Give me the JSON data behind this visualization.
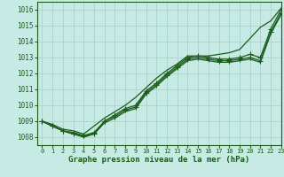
{
  "title": "Graphe pression niveau de la mer (hPa)",
  "bg_color": "#c8eae4",
  "grid_color": "#aad8d0",
  "line_color": "#1a5c1a",
  "xlim": [
    -0.5,
    23
  ],
  "ylim": [
    1007.5,
    1016.5
  ],
  "yticks": [
    1008,
    1009,
    1010,
    1011,
    1012,
    1013,
    1014,
    1015,
    1016
  ],
  "xticks": [
    0,
    1,
    2,
    3,
    4,
    5,
    6,
    7,
    8,
    9,
    10,
    11,
    12,
    13,
    14,
    15,
    16,
    17,
    18,
    19,
    20,
    21,
    22,
    23
  ],
  "lines": [
    {
      "x": [
        0,
        1,
        2,
        3,
        4,
        5,
        6,
        7,
        8,
        9,
        10,
        11,
        12,
        13,
        14,
        15,
        16,
        17,
        18,
        19,
        20,
        21,
        22,
        23
      ],
      "y": [
        1009.0,
        1008.8,
        1008.5,
        1008.4,
        1008.2,
        1008.7,
        1009.2,
        1009.6,
        1010.0,
        1010.5,
        1011.1,
        1011.7,
        1012.2,
        1012.6,
        1013.1,
        1013.1,
        1013.1,
        1013.2,
        1013.3,
        1013.5,
        1014.2,
        1014.9,
        1015.3,
        1016.1
      ],
      "marker": null,
      "markersize": 0,
      "linewidth": 0.9
    },
    {
      "x": [
        0,
        1,
        2,
        3,
        4,
        5,
        6,
        7,
        8,
        9,
        10,
        11,
        12,
        13,
        14,
        15,
        16,
        17,
        18,
        19,
        20,
        21,
        22,
        23
      ],
      "y": [
        1009.0,
        1008.7,
        1008.4,
        1008.2,
        1008.1,
        1008.2,
        1009.0,
        1009.4,
        1009.8,
        1010.0,
        1010.9,
        1011.4,
        1012.0,
        1012.5,
        1013.0,
        1013.1,
        1013.0,
        1012.9,
        1012.9,
        1013.0,
        1013.2,
        1013.0,
        1014.8,
        1016.0
      ],
      "marker": "+",
      "markersize": 4,
      "linewidth": 0.9
    },
    {
      "x": [
        0,
        1,
        2,
        3,
        4,
        5,
        6,
        7,
        8,
        9,
        10,
        11,
        12,
        13,
        14,
        15,
        16,
        17,
        18,
        19,
        20,
        21,
        22,
        23
      ],
      "y": [
        1009.0,
        1008.7,
        1008.4,
        1008.3,
        1008.1,
        1008.3,
        1009.0,
        1009.3,
        1009.7,
        1009.9,
        1010.8,
        1011.3,
        1011.9,
        1012.4,
        1012.9,
        1013.0,
        1012.9,
        1012.8,
        1012.8,
        1012.9,
        1013.0,
        1012.8,
        1014.6,
        1015.8
      ],
      "marker": "+",
      "markersize": 4,
      "linewidth": 0.9
    },
    {
      "x": [
        0,
        1,
        2,
        3,
        4,
        5,
        6,
        7,
        8,
        9,
        10,
        11,
        12,
        13,
        14,
        15,
        16,
        17,
        18,
        19,
        20,
        21,
        22,
        23
      ],
      "y": [
        1009.0,
        1008.7,
        1008.4,
        1008.2,
        1008.0,
        1008.2,
        1008.9,
        1009.2,
        1009.6,
        1009.8,
        1010.7,
        1011.2,
        1011.8,
        1012.3,
        1012.8,
        1012.9,
        1012.8,
        1012.7,
        1012.7,
        1012.8,
        1012.9,
        1012.7,
        1014.5,
        1015.7
      ],
      "marker": null,
      "markersize": 0,
      "linewidth": 0.9
    }
  ],
  "ylabel_fontsize": 5.5,
  "xlabel_fontsize": 6.5,
  "tick_fontsize": 5.0
}
